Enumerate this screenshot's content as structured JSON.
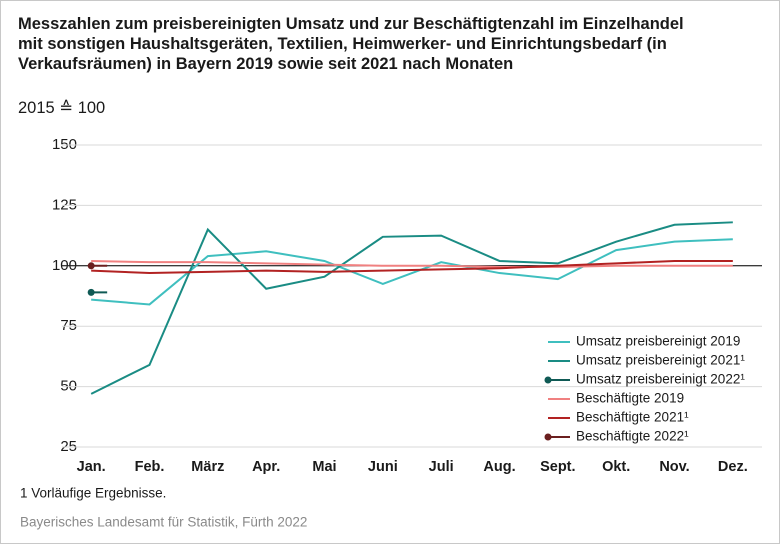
{
  "chart_data": {
    "type": "line",
    "title": "Messzahlen zum preisbereinigten Umsatz und zur Beschäftigtenzahl im Einzelhandel mit sonstigen Haushaltsgeräten, Textilien, Heimwerker- und Einrichtungsbedarf (in Verkaufsräumen) in Bayern 2019 sowie seit 2021 nach Monaten",
    "subtitle": "2015 ≙ 100",
    "categories": [
      "Jan.",
      "Feb.",
      "März",
      "Apr.",
      "Mai",
      "Juni",
      "Juli",
      "Aug.",
      "Sept.",
      "Okt.",
      "Nov.",
      "Dez."
    ],
    "series": [
      {
        "name": "Umsatz preisbereinigt 2019",
        "color": "#3fbfbf",
        "values": [
          86,
          84,
          104,
          106,
          102,
          92.5,
          101.5,
          97,
          94.5,
          106.5,
          110,
          111
        ]
      },
      {
        "name": "Umsatz preisbereinigt 2021¹",
        "color": "#1a8c84",
        "values": [
          47,
          59,
          115,
          90.5,
          95.5,
          112,
          112.5,
          102,
          101,
          110,
          117,
          118
        ]
      },
      {
        "name": "Umsatz preisbereinigt 2022¹",
        "color": "#0f5a55",
        "marker": "circle",
        "values": [
          89,
          null,
          null,
          null,
          null,
          null,
          null,
          null,
          null,
          null,
          null,
          null
        ]
      },
      {
        "name": "Beschäftigte 2019",
        "color": "#f08080",
        "values": [
          102,
          101.5,
          101.5,
          101,
          100.5,
          100,
          100,
          99.5,
          99.5,
          100,
          100,
          100
        ]
      },
      {
        "name": "Beschäftigte 2021¹",
        "color": "#b22222",
        "values": [
          98,
          97,
          97.5,
          98,
          97.5,
          98,
          98.5,
          99,
          100,
          101,
          102,
          102
        ]
      },
      {
        "name": "Beschäftigte 2022¹",
        "color": "#6b1f1f",
        "marker": "circle",
        "values": [
          100,
          null,
          null,
          null,
          null,
          null,
          null,
          null,
          null,
          null,
          null,
          null
        ]
      }
    ],
    "ylim": [
      25,
      150
    ],
    "yticks": [
      25,
      50,
      75,
      100,
      125,
      150
    ],
    "grid": true,
    "reference_line": 100,
    "legend": "lower right",
    "footnote": "1  Vorläufige Ergebnisse.",
    "source": "Bayerisches Landesamt für Statistik, Fürth 2022"
  }
}
